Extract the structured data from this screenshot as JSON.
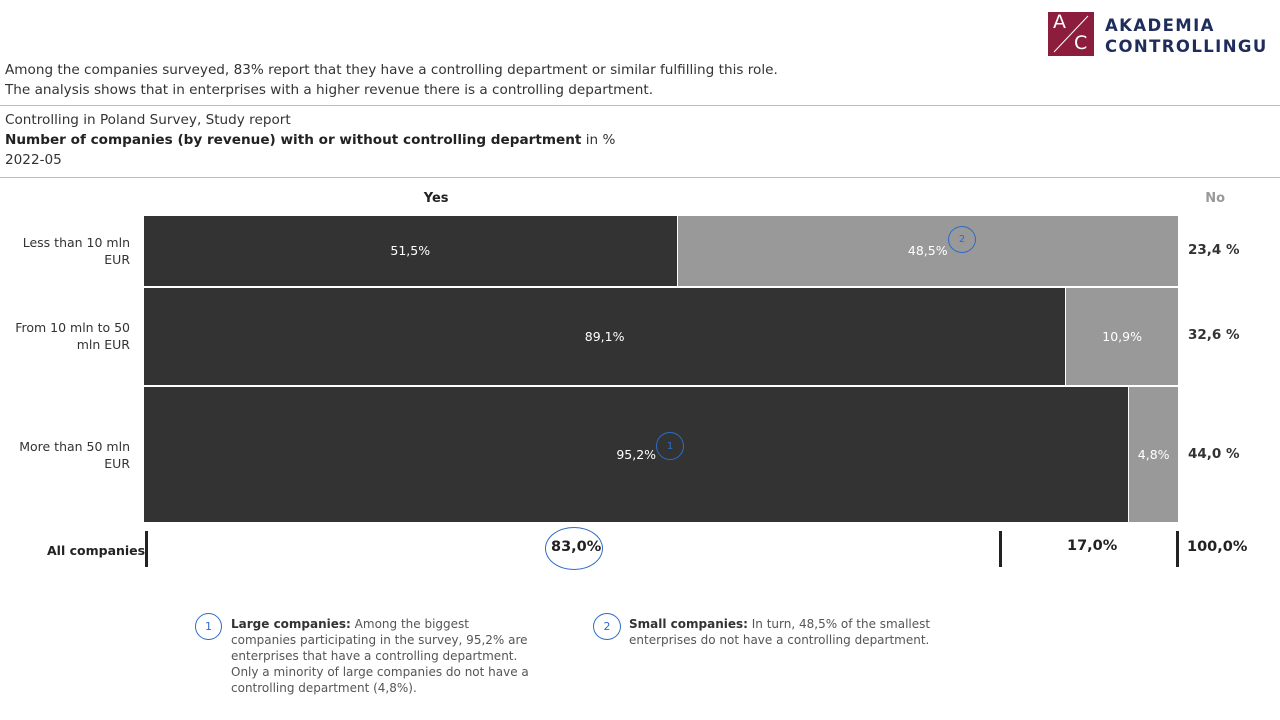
{
  "logo": {
    "letter_a": "A",
    "letter_c": "C",
    "line1": "AKADEMIA",
    "line2": "CONTROLLINGU"
  },
  "intro": {
    "line1": "Among the companies surveyed, 83% report that they have a controlling department or similar fulfilling this role.",
    "line2": "The analysis shows that in enterprises with a higher revenue there is a controlling department."
  },
  "source": {
    "line1": "Controlling in Poland Survey, Study report",
    "title_bold": "Number of companies (by revenue) with or without controlling department",
    "title_unit": " in %",
    "date": "2022-05"
  },
  "chart_data": {
    "type": "bar",
    "subtype": "marimekko",
    "categories": [
      "Less than 10 mln EUR",
      "From 10 mln to 50 mln EUR",
      "More than 50 mln EUR"
    ],
    "category_labels": [
      [
        "Less than 10 mln",
        "EUR"
      ],
      [
        "From 10 mln to 50",
        "mln EUR"
      ],
      [
        "More than 50 mln",
        "EUR"
      ]
    ],
    "column_headers": [
      "Yes",
      "No"
    ],
    "series": [
      {
        "name": "Yes",
        "values": [
          51.5,
          89.1,
          95.2
        ],
        "labels": [
          "51,5%",
          "89,1%",
          "95,2%"
        ],
        "color": "#333333"
      },
      {
        "name": "No",
        "values": [
          48.5,
          10.9,
          4.8
        ],
        "labels": [
          "48,5%",
          "10,9%",
          "4,8%"
        ],
        "color": "#999999"
      }
    ],
    "row_shares": [
      23.4,
      32.6,
      44.0
    ],
    "row_share_labels": [
      "23,4 %",
      "32,6 %",
      "44,0 %"
    ],
    "totals": {
      "label": "All companies",
      "yes": 83.0,
      "no": 17.0,
      "all": 100.0,
      "yes_label": "83,0%",
      "no_label": "17,0%",
      "all_label": "100,0%"
    }
  },
  "annotations": [
    {
      "number": "1",
      "title": "Large companies:",
      "text": " Among the biggest companies participating in the survey, 95,2% are enterprises that have a controlling department. Only a minority of large companies do not have a controlling department (4,8%)."
    },
    {
      "number": "2",
      "title": "Small companies:",
      "text": " In turn, 48,5% of the smallest enterprises do not have a controlling department."
    }
  ]
}
